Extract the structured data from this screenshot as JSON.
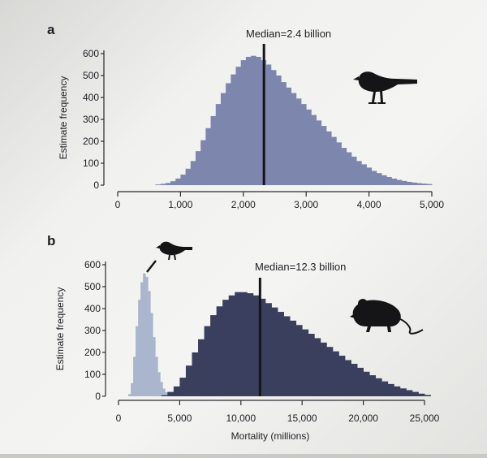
{
  "colors": {
    "dark_navy": "#3b3f5e",
    "light_blue": "#7d87ae",
    "pale_blue": "#a9b6cd",
    "median_line": "#14141a",
    "axis": "#2a2a30"
  },
  "icons": [
    "bird-silhouette-icon",
    "bird-silhouette-icon",
    "mouse-silhouette-icon"
  ],
  "chart_data": [
    {
      "type": "bar",
      "panel_label": "a",
      "title": "Median=2.4 billion",
      "median": 2.4,
      "median_units": "billion",
      "xlabel": "",
      "ylabel": "Estimate frequency",
      "xlim": [
        0,
        5000
      ],
      "ylim": [
        0,
        600
      ],
      "xticks": [
        0,
        1000,
        2000,
        3000,
        4000,
        5000
      ],
      "xtick_labels": [
        "0",
        "1,000",
        "2,000",
        "3,000",
        "4,000",
        "5,000"
      ],
      "yticks": [
        0,
        100,
        200,
        300,
        400,
        500,
        600
      ],
      "bin_width": 80,
      "series": [
        {
          "x": [
            600,
            680,
            760,
            840,
            920,
            1000,
            1080,
            1160,
            1240,
            1320,
            1400,
            1480,
            1560,
            1640,
            1720,
            1800,
            1880,
            1960,
            2040,
            2120,
            2200,
            2280,
            2360,
            2440,
            2520,
            2600,
            2680,
            2760,
            2840,
            2920,
            3000,
            3080,
            3160,
            3240,
            3320,
            3400,
            3480,
            3560,
            3640,
            3720,
            3800,
            3880,
            3960,
            4040,
            4120,
            4200,
            4280,
            4360,
            4440,
            4520,
            4600,
            4680,
            4760,
            4840,
            4920
          ],
          "values": [
            3,
            6,
            10,
            18,
            30,
            48,
            75,
            110,
            155,
            205,
            260,
            315,
            370,
            420,
            465,
            505,
            540,
            570,
            585,
            590,
            585,
            570,
            550,
            525,
            500,
            470,
            445,
            420,
            395,
            370,
            345,
            320,
            295,
            270,
            245,
            220,
            195,
            170,
            150,
            130,
            110,
            95,
            80,
            65,
            55,
            45,
            37,
            30,
            24,
            19,
            15,
            12,
            9,
            7,
            5
          ],
          "color_key": "light_blue"
        }
      ]
    },
    {
      "type": "bar",
      "panel_label": "b",
      "title": "Median=12.3 billion",
      "median": 12.3,
      "median_units": "billion",
      "xlabel": "Mortality (millions)",
      "ylabel": "Estimate frequency",
      "xlim": [
        0,
        25000
      ],
      "ylim": [
        0,
        600
      ],
      "xticks": [
        0,
        5000,
        10000,
        15000,
        20000,
        25000
      ],
      "xtick_labels": [
        "0",
        "5,000",
        "10,000",
        "15,000",
        "20,000",
        "25,000"
      ],
      "yticks": [
        0,
        100,
        200,
        300,
        400,
        500,
        600
      ],
      "bin_width": 500,
      "series": [
        {
          "x": [
            800,
            1000,
            1200,
            1400,
            1600,
            1800,
            2000,
            2200,
            2400,
            2600,
            2800,
            3000,
            3200,
            3400,
            3600,
            3800,
            4000,
            4200,
            4400,
            4600
          ],
          "values": [
            10,
            60,
            180,
            320,
            440,
            520,
            560,
            545,
            480,
            380,
            270,
            180,
            110,
            65,
            35,
            18,
            9,
            4,
            2,
            1
          ],
          "bin_width": 200,
          "color_key": "pale_blue"
        },
        {
          "x": [
            3500,
            4000,
            4500,
            5000,
            5500,
            6000,
            6500,
            7000,
            7500,
            8000,
            8500,
            9000,
            9500,
            10000,
            10500,
            11000,
            11500,
            12000,
            12500,
            13000,
            13500,
            14000,
            14500,
            15000,
            15500,
            16000,
            16500,
            17000,
            17500,
            18000,
            18500,
            19000,
            19500,
            20000,
            20500,
            21000,
            21500,
            22000,
            22500,
            23000,
            23500,
            24000,
            24500,
            25000
          ],
          "values": [
            5,
            20,
            45,
            85,
            140,
            200,
            260,
            320,
            370,
            410,
            440,
            460,
            475,
            475,
            470,
            460,
            445,
            425,
            405,
            385,
            365,
            345,
            325,
            305,
            285,
            265,
            245,
            225,
            205,
            185,
            165,
            148,
            130,
            112,
            96,
            82,
            68,
            56,
            45,
            36,
            28,
            20,
            12,
            6
          ],
          "color_key": "dark_navy"
        }
      ]
    }
  ]
}
